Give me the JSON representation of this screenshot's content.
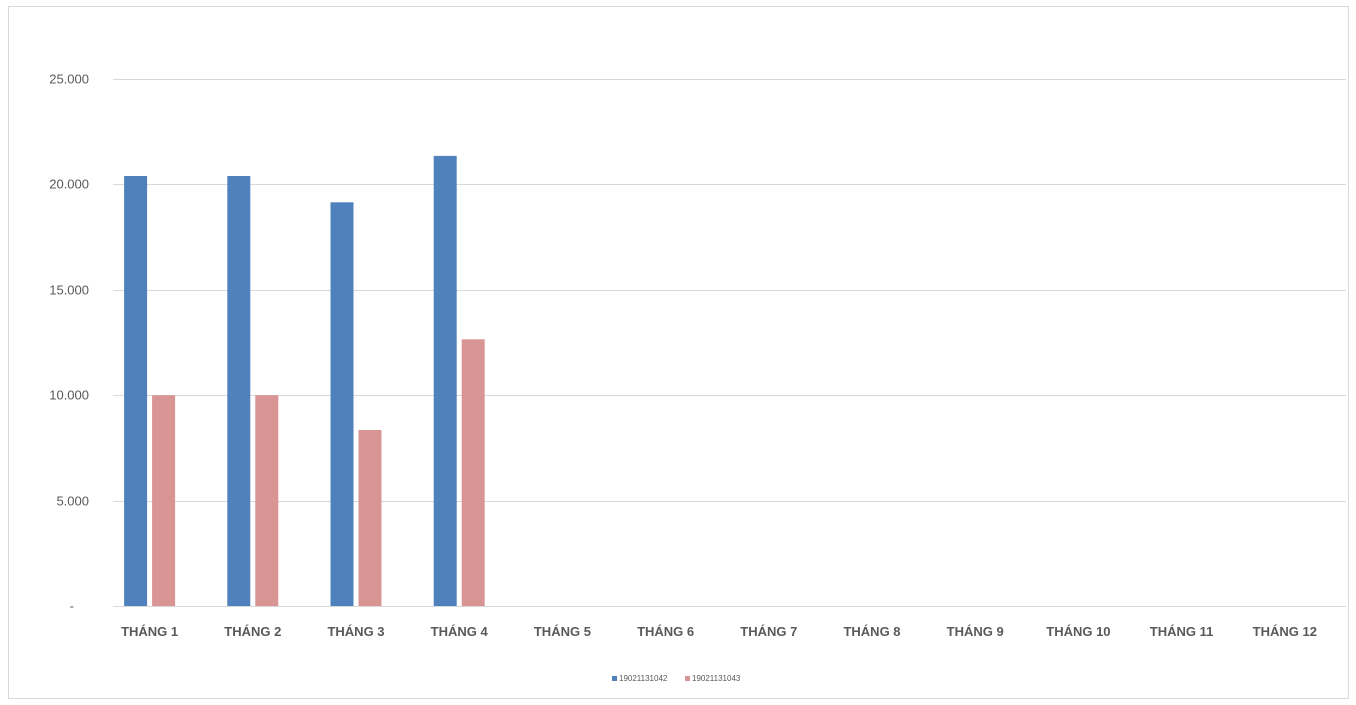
{
  "chart_data": {
    "type": "bar",
    "title": "",
    "xlabel": "",
    "ylabel": "",
    "ylim": [
      0,
      25000
    ],
    "y_ticks": [
      {
        "value": 0,
        "label": "-"
      },
      {
        "value": 5000,
        "label": "5.000"
      },
      {
        "value": 10000,
        "label": "10.000"
      },
      {
        "value": 15000,
        "label": "15.000"
      },
      {
        "value": 20000,
        "label": "20.000"
      },
      {
        "value": 25000,
        "label": "25.000"
      }
    ],
    "grid": true,
    "legend_position": "bottom",
    "categories": [
      "THÁNG 1",
      "THÁNG 2",
      "THÁNG 3",
      "THÁNG 4",
      "THÁNG 5",
      "THÁNG 6",
      "THÁNG 7",
      "THÁNG 8",
      "THÁNG 9",
      "THÁNG 10",
      "THÁNG 11",
      "THÁNG 12"
    ],
    "series": [
      {
        "name": "19021131042",
        "color": "#4f81bd",
        "values": [
          20400,
          20400,
          19150,
          21350,
          null,
          null,
          null,
          null,
          null,
          null,
          null,
          null
        ]
      },
      {
        "name": "19021131043",
        "color": "#d99594",
        "values": [
          10000,
          10000,
          8350,
          12650,
          null,
          null,
          null,
          null,
          null,
          null,
          null,
          null
        ]
      }
    ]
  }
}
